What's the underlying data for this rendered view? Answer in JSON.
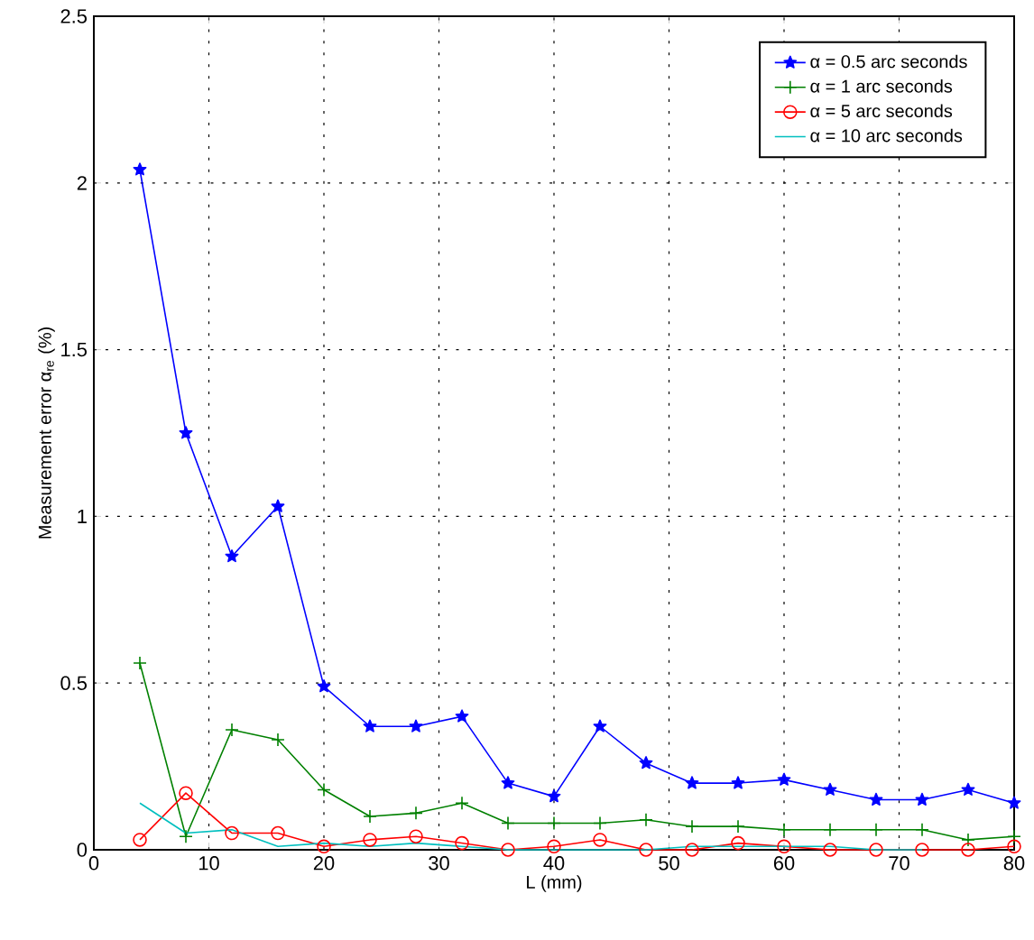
{
  "chart_data": {
    "type": "line",
    "xlabel": "L (mm)",
    "ylabel": "Measurement error  α$_{re}$ (%)",
    "x": [
      4,
      8,
      12,
      16,
      20,
      24,
      28,
      32,
      36,
      40,
      44,
      48,
      52,
      56,
      60,
      64,
      68,
      72,
      76,
      80
    ],
    "xlim": [
      0,
      80
    ],
    "xticks": [
      0,
      10,
      20,
      30,
      40,
      50,
      60,
      70,
      80
    ],
    "ylim": [
      0,
      2.5
    ],
    "yticks": [
      0,
      0.5,
      1,
      1.5,
      2,
      2.5
    ],
    "grid": true,
    "legend": "top right",
    "line_style": "solid",
    "series": [
      {
        "name": "α = 0.5 arc seconds",
        "color": "#0000ff",
        "marker": "star",
        "values": [
          2.04,
          1.25,
          0.88,
          1.03,
          0.49,
          0.37,
          0.37,
          0.4,
          0.2,
          0.16,
          0.37,
          0.26,
          0.2,
          0.2,
          0.21,
          0.18,
          0.15,
          0.15,
          0.18,
          0.14
        ]
      },
      {
        "name": "α = 1 arc seconds",
        "color": "#008000",
        "marker": "cross",
        "values": [
          0.56,
          0.04,
          0.36,
          0.33,
          0.18,
          0.1,
          0.11,
          0.14,
          0.08,
          0.08,
          0.08,
          0.09,
          0.07,
          0.07,
          0.06,
          0.06,
          0.06,
          0.06,
          0.03,
          0.04
        ]
      },
      {
        "name": "α = 5 arc seconds",
        "color": "#ff0000",
        "marker": "circle",
        "values": [
          0.03,
          0.17,
          0.05,
          0.05,
          0.01,
          0.03,
          0.04,
          0.02,
          0.0,
          0.01,
          0.03,
          0.0,
          0.0,
          0.02,
          0.01,
          0.0,
          0.0,
          0.0,
          0.0,
          0.01
        ]
      },
      {
        "name": "α = 10 arc seconds",
        "color": "#00bfbf",
        "marker": "none",
        "values": [
          0.14,
          0.05,
          0.06,
          0.01,
          0.02,
          0.01,
          0.02,
          0.01,
          0.0,
          0.0,
          0.0,
          0.0,
          0.01,
          0.01,
          0.01,
          0.01,
          0.0,
          0.0,
          null,
          null
        ]
      }
    ]
  }
}
